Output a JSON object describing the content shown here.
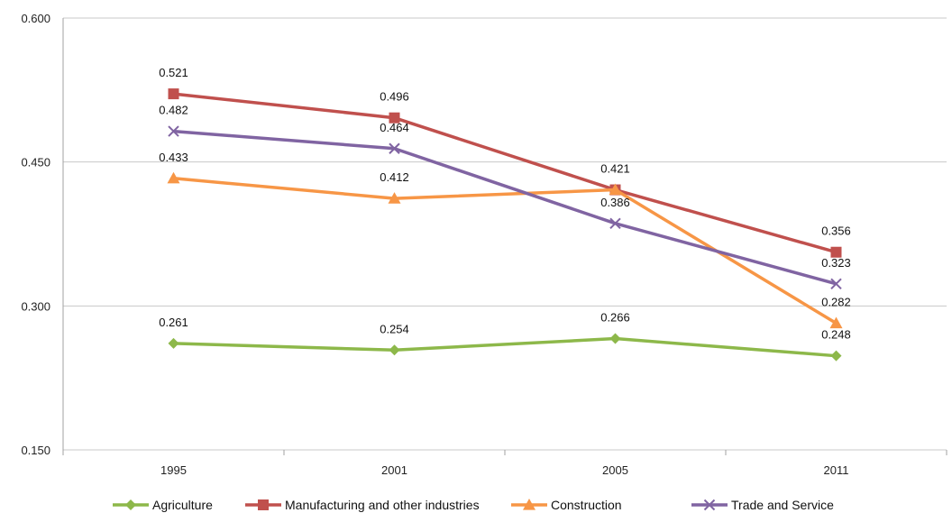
{
  "chart_data": {
    "type": "line",
    "title": "",
    "xlabel": "",
    "ylabel": "",
    "categories": [
      "1995",
      "2001",
      "2005",
      "2011"
    ],
    "ylim": [
      0.15,
      0.6
    ],
    "yticks": [
      "0.600",
      "0.450",
      "0.300",
      "0.150"
    ],
    "ytick_values": [
      0.6,
      0.45,
      0.3,
      0.15
    ],
    "grid": true,
    "legend": "bottom",
    "series": [
      {
        "name": "Agriculture",
        "values": [
          0.261,
          0.254,
          0.266,
          0.248
        ],
        "labels": [
          "0.261",
          "0.254",
          "0.266",
          "0.248"
        ],
        "color": "#8DB84A",
        "marker": "diamond"
      },
      {
        "name": "Manufacturing and other industries",
        "values": [
          0.521,
          0.496,
          0.421,
          0.356
        ],
        "labels": [
          "0.521",
          "0.496",
          "0.421",
          "0.356"
        ],
        "color": "#C0504D",
        "marker": "square"
      },
      {
        "name": "Construction",
        "values": [
          0.433,
          0.412,
          0.421,
          0.282
        ],
        "labels": [
          "0.433",
          "0.412",
          "",
          "0.282"
        ],
        "color": "#F79646",
        "marker": "triangle"
      },
      {
        "name": "Trade and Service",
        "values": [
          0.482,
          0.464,
          0.386,
          0.323
        ],
        "labels": [
          "0.482",
          "0.464",
          "0.386",
          "0.323"
        ],
        "color": "#8064A2",
        "marker": "x"
      }
    ]
  }
}
